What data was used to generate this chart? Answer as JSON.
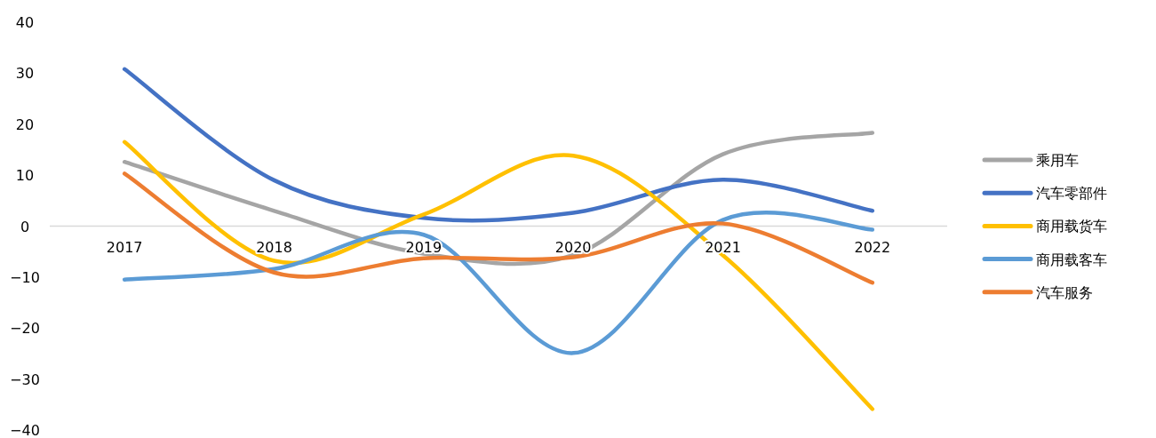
{
  "chart_data": {
    "type": "line",
    "categories": [
      "2017",
      "2018",
      "2019",
      "2020",
      "2021",
      "2022"
    ],
    "series": [
      {
        "name": "乘用车",
        "color": "#a5a5a5",
        "values": [
          12.6,
          3.0,
          -5.4,
          -5.7,
          14.1,
          18.3
        ]
      },
      {
        "name": "汽车零部件",
        "color": "#4472c4",
        "values": [
          30.8,
          9.0,
          1.6,
          2.6,
          9.1,
          3.0
        ]
      },
      {
        "name": "商用载货车",
        "color": "#ffc000",
        "values": [
          16.5,
          -6.8,
          2.3,
          13.8,
          -5.7,
          -35.9
        ]
      },
      {
        "name": "商用载客车",
        "color": "#5b9bd5",
        "values": [
          -10.5,
          -8.4,
          -1.7,
          -24.9,
          1.2,
          -0.7
        ]
      },
      {
        "name": "汽车服务",
        "color": "#ed7d31",
        "values": [
          10.3,
          -9.1,
          -6.3,
          -6.1,
          0.5,
          -11.1
        ]
      }
    ],
    "ylim": [
      -40,
      40
    ],
    "yticks": [
      -40,
      -30,
      -20,
      -10,
      0,
      10,
      20,
      30,
      40
    ],
    "legend": "right"
  }
}
